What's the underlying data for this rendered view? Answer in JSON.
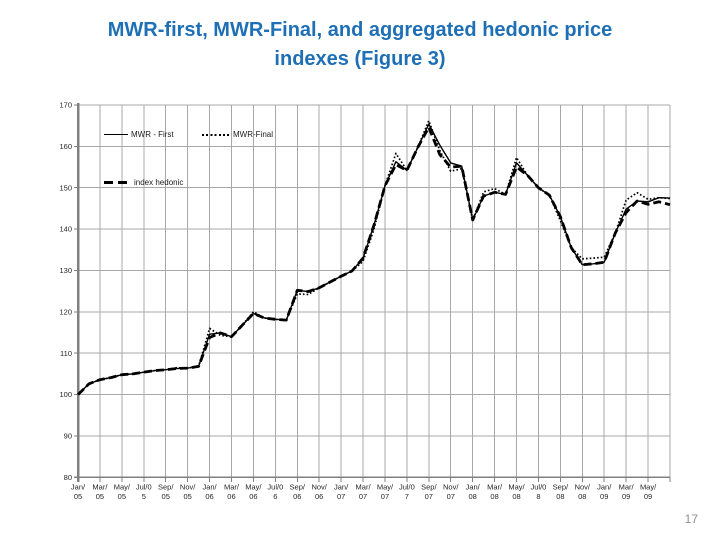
{
  "slide": {
    "title_line1": "MWR-first, MWR-Final, and aggregated hedonic price",
    "title_line2": "indexes (Figure 3)",
    "title_color": "#1e6fb5",
    "page_number": "17"
  },
  "legend": {
    "items": [
      {
        "label": "MWR - First",
        "style": "solid"
      },
      {
        "label": "MWR-Final",
        "style": "dotted"
      },
      {
        "label": "index hedonic",
        "style": "dashed"
      }
    ]
  },
  "chart_data": {
    "type": "line",
    "title": "MWR-first, MWR-Final, and aggregated hedonic price indexes (Figure 3)",
    "xlabel": "",
    "ylabel": "",
    "ylim": [
      80,
      170
    ],
    "grid": true,
    "legend_position": "inside-top-left",
    "grid_color": "#a8a8a8",
    "axis_color": "#808080",
    "tick_label_color": "#262626",
    "y_ticks": [
      170,
      160,
      150,
      140,
      130,
      120,
      110,
      100,
      90,
      80
    ],
    "x_tick_labels": [
      [
        "Jan/",
        "05"
      ],
      [
        "Mar/",
        "05"
      ],
      [
        "May/",
        "05"
      ],
      [
        "Jul/0",
        "5"
      ],
      [
        "Sep/",
        "05"
      ],
      [
        "Nov/",
        "05"
      ],
      [
        "Jan/",
        "06"
      ],
      [
        "Mar/",
        "06"
      ],
      [
        "May/",
        "06"
      ],
      [
        "Jul/0",
        "6"
      ],
      [
        "Sep/",
        "06"
      ],
      [
        "Nov/",
        "06"
      ],
      [
        "Jan/",
        "07"
      ],
      [
        "Mar/",
        "07"
      ],
      [
        "May/",
        "07"
      ],
      [
        "Jul/0",
        "7"
      ],
      [
        "Sep/",
        "07"
      ],
      [
        "Nov/",
        "07"
      ],
      [
        "Jan/",
        "08"
      ],
      [
        "Mar/",
        "08"
      ],
      [
        "May/",
        "08"
      ],
      [
        "Jul/0",
        "8"
      ],
      [
        "Sep/",
        "08"
      ],
      [
        "Nov/",
        "08"
      ],
      [
        "Jan/",
        "09"
      ],
      [
        "Mar/",
        "09"
      ],
      [
        "May/",
        "09"
      ]
    ],
    "months_per_tick": 2,
    "series": [
      {
        "name": "MWR - First",
        "dash": "solid",
        "width": 1.4,
        "color": "#000000",
        "values": [
          100.0,
          102.6,
          103.6,
          104.1,
          104.8,
          105.0,
          105.4,
          105.8,
          106.0,
          106.3,
          106.4,
          106.8,
          114.6,
          114.9,
          114.0,
          116.8,
          119.6,
          118.5,
          118.2,
          118.0,
          125.2,
          124.9,
          125.8,
          127.2,
          128.6,
          129.9,
          133.0,
          141.0,
          150.5,
          156.3,
          154.2,
          159.8,
          165.4,
          160.3,
          156.0,
          155.2,
          142.2,
          148.0,
          148.9,
          148.4,
          156.0,
          153.0,
          150.0,
          148.2,
          143.0,
          135.5,
          131.4,
          131.6,
          132.0,
          139.0,
          144.8,
          146.8,
          146.6,
          147.6,
          147.5
        ]
      },
      {
        "name": "index hedonic",
        "dash": "dashed",
        "width": 2.8,
        "color": "#000000",
        "values": [
          100.0,
          102.6,
          103.6,
          104.1,
          104.8,
          105.0,
          105.4,
          105.8,
          106.0,
          106.3,
          106.4,
          106.8,
          113.8,
          114.9,
          114.0,
          116.8,
          119.6,
          118.5,
          118.2,
          118.0,
          125.2,
          124.9,
          125.8,
          127.2,
          128.6,
          129.9,
          133.0,
          141.0,
          150.5,
          155.6,
          154.2,
          159.8,
          164.6,
          158.0,
          155.0,
          155.2,
          142.2,
          148.0,
          148.9,
          148.4,
          155.0,
          153.0,
          150.0,
          148.2,
          143.0,
          135.5,
          131.4,
          131.6,
          132.0,
          139.0,
          144.0,
          146.8,
          146.0,
          146.6,
          145.9
        ]
      },
      {
        "name": "MWR-Final",
        "dash": "dotted",
        "width": 1.7,
        "color": "#000000",
        "values": [
          100.0,
          102.6,
          103.6,
          104.1,
          104.8,
          105.0,
          105.4,
          105.8,
          106.0,
          106.5,
          106.4,
          106.8,
          116.0,
          114.3,
          114.0,
          116.8,
          120.0,
          118.5,
          118.2,
          118.0,
          124.3,
          124.2,
          125.8,
          127.2,
          128.6,
          129.9,
          132.2,
          140.0,
          150.5,
          158.3,
          154.2,
          159.8,
          166.2,
          159.0,
          154.0,
          154.6,
          142.2,
          149.0,
          149.8,
          148.4,
          157.3,
          153.0,
          150.0,
          148.2,
          142.0,
          135.5,
          132.8,
          133.0,
          133.2,
          139.0,
          147.0,
          148.8,
          147.2,
          147.6,
          147.4
        ]
      }
    ]
  }
}
